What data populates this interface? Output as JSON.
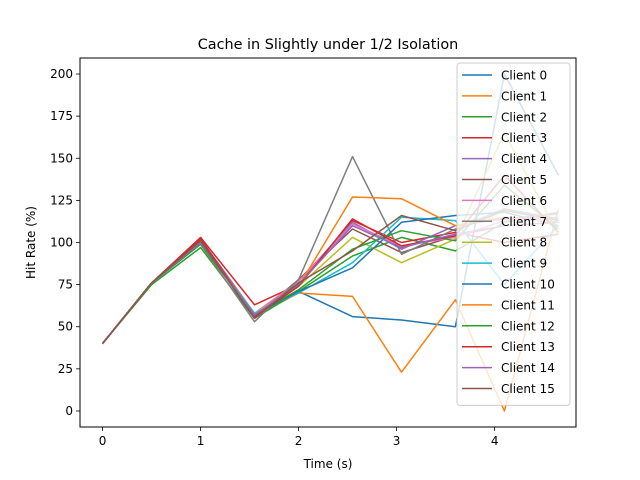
{
  "chart_data": {
    "type": "line",
    "title": "Cache in Slightly under 1/2 Isolation",
    "xlabel": "Time (s)",
    "ylabel": "Hit Rate (%)",
    "xlim": [
      -0.23,
      4.83
    ],
    "ylim": [
      -9.5,
      209.5
    ],
    "xticks": [
      0,
      1,
      2,
      3,
      4
    ],
    "yticks": [
      0,
      25,
      50,
      75,
      100,
      125,
      150,
      175,
      200
    ],
    "legend_position": "top-right",
    "x": [
      0,
      0.5,
      1.0,
      1.55,
      2.0,
      2.55,
      3.05,
      3.6,
      4.1,
      4.65
    ],
    "series": [
      {
        "name": "Client 0",
        "color": "#1f77b4",
        "values": [
          40,
          76,
          101,
          57,
          71,
          56,
          54,
          50,
          200,
          140
        ]
      },
      {
        "name": "Client 1",
        "color": "#ff7f0e",
        "values": [
          40,
          76,
          100,
          56,
          70,
          68,
          23,
          66,
          0,
          120
        ]
      },
      {
        "name": "Client 2",
        "color": "#2ca02c",
        "values": [
          40,
          75,
          97,
          55,
          71,
          92,
          103,
          95,
          112,
          118
        ]
      },
      {
        "name": "Client 3",
        "color": "#d62728",
        "values": [
          40,
          76,
          103,
          63,
          75,
          113,
          100,
          106,
          100,
          105
        ]
      },
      {
        "name": "Client 4",
        "color": "#9467bd",
        "values": [
          40,
          76,
          102,
          58,
          77,
          112,
          96,
          110,
          114,
          117
        ]
      },
      {
        "name": "Client 5",
        "color": "#8c564b",
        "values": [
          40,
          76,
          101,
          56,
          78,
          108,
          94,
          104,
          110,
          112
        ]
      },
      {
        "name": "Client 6",
        "color": "#e377c2",
        "values": [
          40,
          76,
          100,
          58,
          77,
          111,
          98,
          103,
          113,
          115
        ]
      },
      {
        "name": "Client 7",
        "color": "#7f7f7f",
        "values": [
          40,
          76,
          99,
          53,
          78,
          151,
          93,
          108,
          120,
          114
        ]
      },
      {
        "name": "Client 8",
        "color": "#bcbd22",
        "values": [
          40,
          76,
          100,
          58,
          74,
          103,
          88,
          102,
          165,
          105
        ]
      },
      {
        "name": "Client 9",
        "color": "#17becf",
        "values": [
          40,
          76,
          99,
          58,
          70,
          88,
          115,
          113,
          75,
          110
        ]
      },
      {
        "name": "Client 10",
        "color": "#1f77b4",
        "values": [
          40,
          76,
          100,
          57,
          71,
          85,
          112,
          116,
          118,
          110
        ]
      },
      {
        "name": "Client 11",
        "color": "#ff7f0e",
        "values": [
          40,
          76,
          101,
          56,
          74,
          127,
          126,
          110,
          115,
          112
        ]
      },
      {
        "name": "Client 12",
        "color": "#2ca02c",
        "values": [
          40,
          76,
          99,
          57,
          72,
          96,
          107,
          101,
          134,
          108
        ]
      },
      {
        "name": "Client 13",
        "color": "#d62728",
        "values": [
          40,
          76,
          102,
          56,
          74,
          114,
          98,
          104,
          140,
          106
        ]
      },
      {
        "name": "Client 14",
        "color": "#9467bd",
        "values": [
          40,
          76,
          100,
          57,
          75,
          110,
          97,
          105,
          110,
          112
        ]
      },
      {
        "name": "Client 15",
        "color": "#8c564b",
        "values": [
          40,
          76,
          101,
          55,
          76,
          95,
          116,
          107,
          119,
          113
        ]
      }
    ]
  }
}
